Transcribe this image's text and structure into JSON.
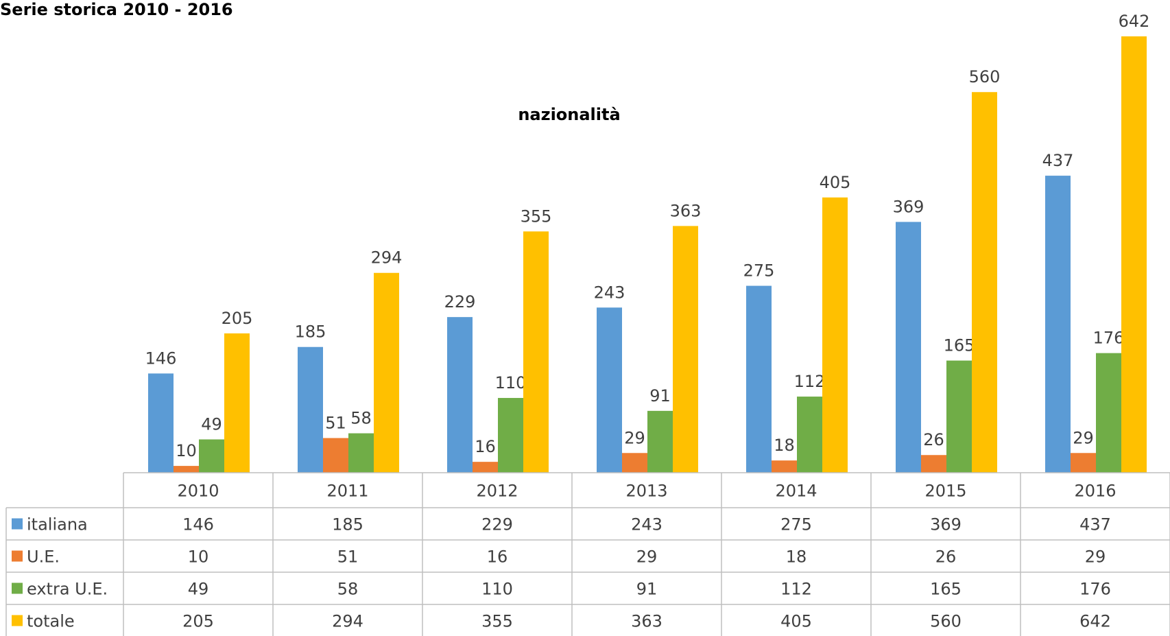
{
  "heading": "Serie storica 2010 - 2016",
  "chart_data": {
    "type": "bar",
    "title": "nazionalità",
    "categories": [
      "2010",
      "2011",
      "2012",
      "2013",
      "2014",
      "2015",
      "2016"
    ],
    "series": [
      {
        "name": "italiana",
        "color": "#5b9bd5",
        "values": [
          146,
          185,
          229,
          243,
          275,
          369,
          437
        ]
      },
      {
        "name": "U.E.",
        "color": "#ed7d31",
        "values": [
          10,
          51,
          16,
          29,
          18,
          26,
          29
        ]
      },
      {
        "name": "extra U.E.",
        "color": "#70ad47",
        "values": [
          49,
          58,
          110,
          91,
          112,
          165,
          176
        ]
      },
      {
        "name": "totale",
        "color": "#ffc000",
        "values": [
          205,
          294,
          355,
          363,
          405,
          560,
          642
        ]
      }
    ],
    "data_table": true
  }
}
